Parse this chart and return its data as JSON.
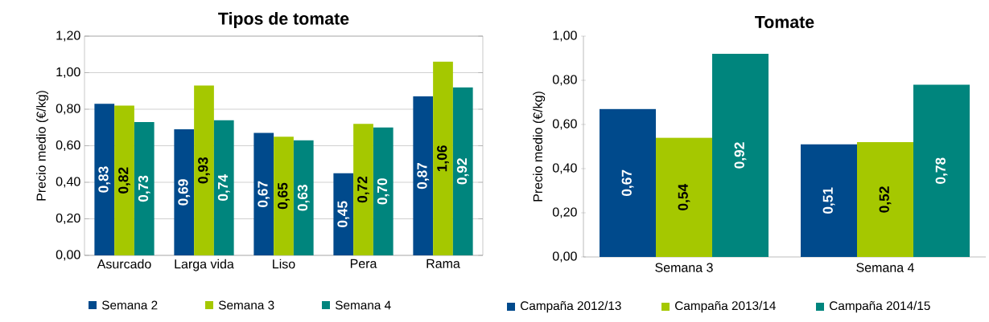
{
  "chart_data": [
    {
      "type": "bar",
      "title": "Tipos de tomate",
      "ylabel": "Precio medio (€/kg)",
      "categories": [
        "Asurcado",
        "Larga vida",
        "Liso",
        "Pera",
        "Rama"
      ],
      "series": [
        {
          "name": "Semana 2",
          "color": "#004a8c",
          "values": [
            0.83,
            0.69,
            0.67,
            0.45,
            0.87
          ],
          "value_labels": [
            "0,83",
            "0,69",
            "0,67",
            "0,45",
            "0,87"
          ]
        },
        {
          "name": "Semana 3",
          "color": "#a5c800",
          "values": [
            0.82,
            0.93,
            0.65,
            0.72,
            1.06
          ],
          "value_labels": [
            "0,82",
            "0,93",
            "0,65",
            "0,72",
            "1,06"
          ]
        },
        {
          "name": "Semana 4",
          "color": "#00857d",
          "values": [
            0.73,
            0.74,
            0.63,
            0.7,
            0.92
          ],
          "value_labels": [
            "0,73",
            "0,74",
            "0,63",
            "0,70",
            "0,92"
          ]
        }
      ],
      "ylim": [
        0,
        1.2
      ],
      "yticks": [
        {
          "value": 0,
          "label": "0,00"
        },
        {
          "value": 0.2,
          "label": "0,20"
        },
        {
          "value": 0.4,
          "label": "0,40"
        },
        {
          "value": 0.6,
          "label": "0,60"
        },
        {
          "value": 0.8,
          "label": "0,80"
        },
        {
          "value": 1.0,
          "label": "1,00"
        },
        {
          "value": 1.2,
          "label": "1,20"
        }
      ],
      "grid": "y",
      "legend": "bottom"
    },
    {
      "type": "bar",
      "title": "Tomate",
      "ylabel": "Precio medio (€/kg)",
      "categories": [
        "Semana 3",
        "Semana 4"
      ],
      "series": [
        {
          "name": "Campaña 2012/13",
          "color": "#004a8c",
          "values": [
            0.67,
            0.51
          ],
          "value_labels": [
            "0,67",
            "0,51"
          ]
        },
        {
          "name": "Campaña 2013/14",
          "color": "#a5c800",
          "values": [
            0.54,
            0.52
          ],
          "value_labels": [
            "0,54",
            "0,52"
          ]
        },
        {
          "name": "Campaña 2014/15",
          "color": "#00857d",
          "values": [
            0.92,
            0.78
          ],
          "value_labels": [
            "0,92",
            "0,78"
          ]
        }
      ],
      "ylim": [
        0,
        1.0
      ],
      "yticks": [
        {
          "value": 0,
          "label": "0,00"
        },
        {
          "value": 0.2,
          "label": "0,20"
        },
        {
          "value": 0.4,
          "label": "0,40"
        },
        {
          "value": 0.6,
          "label": "0,60"
        },
        {
          "value": 0.8,
          "label": "0,80"
        },
        {
          "value": 1.0,
          "label": "1,00"
        }
      ],
      "legend": "bottom"
    }
  ]
}
